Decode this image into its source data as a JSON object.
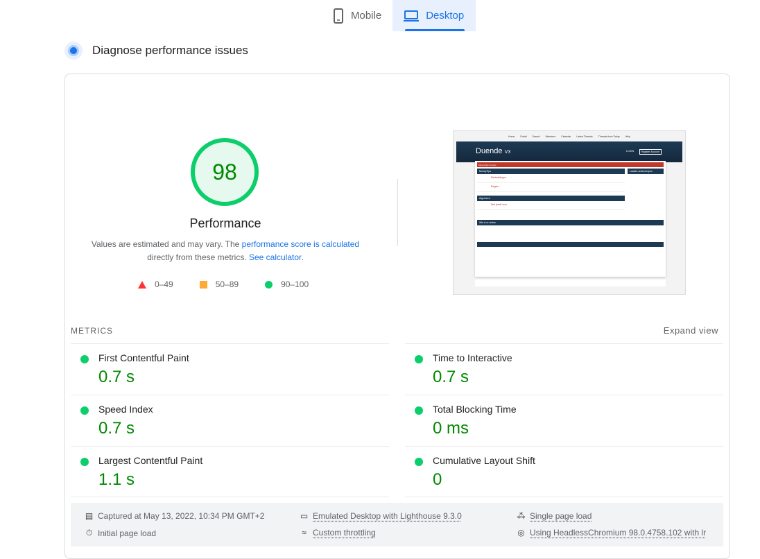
{
  "tabs": [
    {
      "label": "Mobile",
      "icon": "phone-icon"
    },
    {
      "label": "Desktop",
      "icon": "laptop-icon",
      "active": true
    }
  ],
  "section_title": "Diagnose performance issues",
  "score": {
    "value": "98",
    "label": "Performance",
    "color": "#0cce6b"
  },
  "note": {
    "p1": "Values are estimated and may vary. The ",
    "link1": "performance score is calculated",
    "p2": "directly from these metrics. ",
    "link2": "See calculator",
    "p3": "."
  },
  "legend": [
    {
      "range": "0–49",
      "color": "#ff3333"
    },
    {
      "range": "50–89",
      "color": "#ffaa33"
    },
    {
      "range": "90–100",
      "color": "#0cce6b"
    }
  ],
  "screenshot": {
    "nav": [
      "Home",
      "Portal",
      "Search",
      "Members",
      "Calendar",
      "Latest Threads",
      "Threads from Today",
      "Help"
    ],
    "logo": "Duende",
    "logo_ver": "V3",
    "login": "LOGIN",
    "register": "Register Account",
    "forum": "MoneyTips Forums",
    "cat1": "MoneyTips",
    "rows1": [
      "Mededelingen",
      "Regels"
    ],
    "cat2": "Algemeen",
    "rows2": [
      "Stel jezelf voor"
    ],
    "side": "Laatste onderwerpen",
    "online": "Wie is er online"
  },
  "metrics_header": "METRICS",
  "expand_label": "Expand view",
  "metrics": [
    {
      "label": "First Contentful Paint",
      "value": "0.7 s"
    },
    {
      "label": "Time to Interactive",
      "value": "0.7 s"
    },
    {
      "label": "Speed Index",
      "value": "0.7 s"
    },
    {
      "label": "Total Blocking Time",
      "value": "0 ms"
    },
    {
      "label": "Largest Contentful Paint",
      "value": "1.1 s"
    },
    {
      "label": "Cumulative Layout Shift",
      "value": "0"
    }
  ],
  "info": {
    "captured": "Captured at May 13, 2022, 10:34 PM GMT+2",
    "initial": "Initial page load",
    "emulated": "Emulated Desktop with Lighthouse 9.3.0",
    "throttling": "Custom throttling",
    "single": "Single page load",
    "browser": "Using HeadlessChromium 98.0.4758.102 with lr"
  }
}
